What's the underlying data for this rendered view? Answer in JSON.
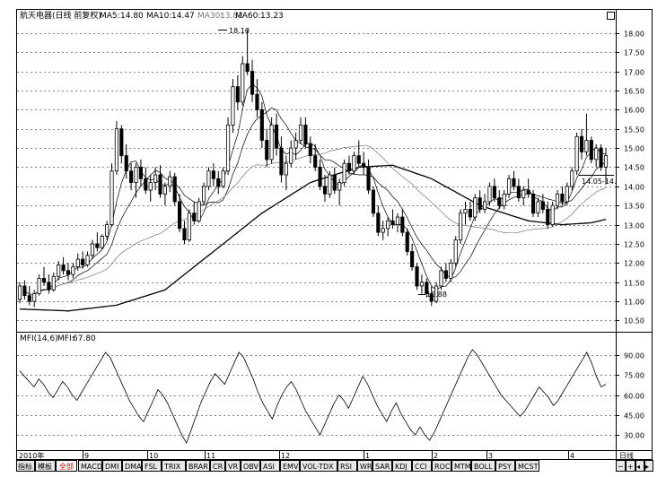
{
  "header": {
    "name": "航天电器(日线 前复权)",
    "ma5_label": "MA5:",
    "ma5_value": "14.80",
    "ma10_label": "MA10:",
    "ma10_value": "14.47",
    "ma30_label": "MA30:",
    "ma30_value": "13.82",
    "ma60_label": "MA60:",
    "ma60_value": "13.23"
  },
  "indicator_header": {
    "name": "MFI(14,6)",
    "value_label": "MFI:",
    "value": "67.80"
  },
  "annotations": {
    "high": "18.10",
    "low": "10.88",
    "last_range": "14.05-14."
  },
  "price_axis_ticks": [
    "18.00",
    "17.50",
    "17.00",
    "16.50",
    "16.00",
    "15.50",
    "15.00",
    "14.50",
    "14.00",
    "13.50",
    "13.00",
    "12.50",
    "12.00",
    "11.50",
    "11.00",
    "10.50"
  ],
  "mfi_axis_ticks": [
    "90.00",
    "75.00",
    "60.00",
    "45.00",
    "30.00"
  ],
  "time_axis_labels": [
    "2010年",
    "9",
    "10",
    "11",
    "12",
    "1",
    "2",
    "3",
    "4"
  ],
  "period": "日线",
  "nav": {
    "prev": "◂",
    "next": "▸",
    "minus": "−",
    "plus": "+"
  },
  "tabs": {
    "indicator": "指标",
    "template": "模板",
    "all": "全部"
  },
  "indicators": [
    "MACD",
    "DMI",
    "DMA",
    "FSL",
    "TRIX",
    "BRAR",
    "CR",
    "VR",
    "OBV",
    "ASI",
    "EMV",
    "VOL-TDX",
    "RSI",
    "WR",
    "SAR",
    "KDJ",
    "CCI",
    "ROC",
    "MTM",
    "BOLL",
    "PSY",
    "MCST"
  ],
  "colors": {
    "background": "#ffffff",
    "line": "#000000",
    "grid": "#000000",
    "active_tab": "#cc0000",
    "ma30": "#777777"
  },
  "chart_data": {
    "type": "candlestick",
    "price_ylim": [
      10.3,
      18.3
    ],
    "mfi_ylim": [
      20,
      98
    ],
    "candles": [
      {
        "o": 11.05,
        "h": 11.5,
        "l": 10.95,
        "c": 11.4
      },
      {
        "o": 11.4,
        "h": 11.55,
        "l": 11.05,
        "c": 11.15
      },
      {
        "o": 11.15,
        "h": 11.4,
        "l": 10.9,
        "c": 11.0
      },
      {
        "o": 11.0,
        "h": 11.3,
        "l": 10.85,
        "c": 11.2
      },
      {
        "o": 11.2,
        "h": 11.7,
        "l": 11.15,
        "c": 11.6
      },
      {
        "o": 11.6,
        "h": 11.9,
        "l": 11.4,
        "c": 11.5
      },
      {
        "o": 11.5,
        "h": 11.7,
        "l": 11.2,
        "c": 11.3
      },
      {
        "o": 11.3,
        "h": 11.75,
        "l": 11.25,
        "c": 11.65
      },
      {
        "o": 11.65,
        "h": 12.05,
        "l": 11.55,
        "c": 11.95
      },
      {
        "o": 11.95,
        "h": 12.15,
        "l": 11.7,
        "c": 11.8
      },
      {
        "o": 11.8,
        "h": 12.0,
        "l": 11.55,
        "c": 11.7
      },
      {
        "o": 11.7,
        "h": 12.0,
        "l": 11.6,
        "c": 11.9
      },
      {
        "o": 11.9,
        "h": 12.25,
        "l": 11.8,
        "c": 12.1
      },
      {
        "o": 12.1,
        "h": 12.3,
        "l": 11.85,
        "c": 11.95
      },
      {
        "o": 11.95,
        "h": 12.3,
        "l": 11.9,
        "c": 12.2
      },
      {
        "o": 12.2,
        "h": 12.6,
        "l": 12.1,
        "c": 12.5
      },
      {
        "o": 12.5,
        "h": 12.8,
        "l": 12.3,
        "c": 12.4
      },
      {
        "o": 12.4,
        "h": 12.75,
        "l": 12.35,
        "c": 12.7
      },
      {
        "o": 12.7,
        "h": 13.1,
        "l": 12.6,
        "c": 13.0
      },
      {
        "o": 13.0,
        "h": 14.6,
        "l": 12.95,
        "c": 14.4
      },
      {
        "o": 14.4,
        "h": 15.7,
        "l": 14.3,
        "c": 15.5
      },
      {
        "o": 15.5,
        "h": 15.6,
        "l": 14.6,
        "c": 14.8
      },
      {
        "o": 14.8,
        "h": 15.1,
        "l": 14.2,
        "c": 14.4
      },
      {
        "o": 14.4,
        "h": 14.6,
        "l": 13.9,
        "c": 14.1
      },
      {
        "o": 14.1,
        "h": 14.6,
        "l": 13.7,
        "c": 14.5
      },
      {
        "o": 14.5,
        "h": 14.7,
        "l": 14.0,
        "c": 14.2
      },
      {
        "o": 14.2,
        "h": 14.5,
        "l": 13.8,
        "c": 13.9
      },
      {
        "o": 13.9,
        "h": 14.3,
        "l": 13.6,
        "c": 14.1
      },
      {
        "o": 14.1,
        "h": 14.5,
        "l": 13.9,
        "c": 14.3
      },
      {
        "o": 14.3,
        "h": 14.55,
        "l": 13.7,
        "c": 13.8
      },
      {
        "o": 13.8,
        "h": 14.1,
        "l": 13.5,
        "c": 14.0
      },
      {
        "o": 14.0,
        "h": 14.4,
        "l": 13.85,
        "c": 14.25
      },
      {
        "o": 14.25,
        "h": 14.35,
        "l": 13.5,
        "c": 13.6
      },
      {
        "o": 13.6,
        "h": 13.8,
        "l": 12.8,
        "c": 12.9
      },
      {
        "o": 12.9,
        "h": 13.1,
        "l": 12.5,
        "c": 12.6
      },
      {
        "o": 12.6,
        "h": 13.4,
        "l": 12.55,
        "c": 13.3
      },
      {
        "o": 13.3,
        "h": 13.6,
        "l": 13.0,
        "c": 13.1
      },
      {
        "o": 13.1,
        "h": 13.7,
        "l": 13.05,
        "c": 13.6
      },
      {
        "o": 13.6,
        "h": 14.1,
        "l": 13.5,
        "c": 14.0
      },
      {
        "o": 14.0,
        "h": 14.5,
        "l": 13.9,
        "c": 14.4
      },
      {
        "o": 14.4,
        "h": 14.6,
        "l": 14.0,
        "c": 14.2
      },
      {
        "o": 14.2,
        "h": 14.4,
        "l": 13.8,
        "c": 14.0
      },
      {
        "o": 14.0,
        "h": 14.5,
        "l": 13.95,
        "c": 14.4
      },
      {
        "o": 14.4,
        "h": 15.8,
        "l": 14.3,
        "c": 15.6
      },
      {
        "o": 15.6,
        "h": 16.8,
        "l": 15.4,
        "c": 16.6
      },
      {
        "o": 16.6,
        "h": 16.9,
        "l": 16.0,
        "c": 16.2
      },
      {
        "o": 16.2,
        "h": 17.4,
        "l": 16.1,
        "c": 17.2
      },
      {
        "o": 17.2,
        "h": 18.1,
        "l": 16.9,
        "c": 17.0
      },
      {
        "o": 17.0,
        "h": 17.3,
        "l": 16.2,
        "c": 16.4
      },
      {
        "o": 16.4,
        "h": 16.8,
        "l": 15.8,
        "c": 16.0
      },
      {
        "o": 16.0,
        "h": 16.2,
        "l": 15.0,
        "c": 15.2
      },
      {
        "o": 15.2,
        "h": 15.5,
        "l": 14.5,
        "c": 14.7
      },
      {
        "o": 14.7,
        "h": 15.8,
        "l": 14.6,
        "c": 15.6
      },
      {
        "o": 15.6,
        "h": 15.9,
        "l": 14.8,
        "c": 15.0
      },
      {
        "o": 15.0,
        "h": 15.3,
        "l": 14.1,
        "c": 14.3
      },
      {
        "o": 14.3,
        "h": 14.8,
        "l": 13.9,
        "c": 14.6
      },
      {
        "o": 14.6,
        "h": 15.2,
        "l": 14.5,
        "c": 15.0
      },
      {
        "o": 15.0,
        "h": 15.4,
        "l": 14.7,
        "c": 15.2
      },
      {
        "o": 15.2,
        "h": 15.8,
        "l": 15.1,
        "c": 15.6
      },
      {
        "o": 15.6,
        "h": 15.8,
        "l": 15.0,
        "c": 15.1
      },
      {
        "o": 15.1,
        "h": 15.3,
        "l": 14.6,
        "c": 14.8
      },
      {
        "o": 14.8,
        "h": 15.1,
        "l": 14.4,
        "c": 14.5
      },
      {
        "o": 14.5,
        "h": 14.7,
        "l": 13.9,
        "c": 14.0
      },
      {
        "o": 14.0,
        "h": 14.3,
        "l": 13.6,
        "c": 13.8
      },
      {
        "o": 13.8,
        "h": 14.4,
        "l": 13.7,
        "c": 14.3
      },
      {
        "o": 14.3,
        "h": 14.5,
        "l": 13.8,
        "c": 13.9
      },
      {
        "o": 13.9,
        "h": 14.2,
        "l": 13.5,
        "c": 14.1
      },
      {
        "o": 14.1,
        "h": 14.7,
        "l": 14.0,
        "c": 14.6
      },
      {
        "o": 14.6,
        "h": 14.8,
        "l": 14.3,
        "c": 14.4
      },
      {
        "o": 14.4,
        "h": 14.9,
        "l": 14.3,
        "c": 14.8
      },
      {
        "o": 14.8,
        "h": 15.2,
        "l": 14.5,
        "c": 14.6
      },
      {
        "o": 14.6,
        "h": 14.9,
        "l": 14.3,
        "c": 14.5
      },
      {
        "o": 14.5,
        "h": 14.7,
        "l": 13.8,
        "c": 13.9
      },
      {
        "o": 13.9,
        "h": 14.0,
        "l": 13.2,
        "c": 13.3
      },
      {
        "o": 13.3,
        "h": 13.5,
        "l": 12.7,
        "c": 12.8
      },
      {
        "o": 12.8,
        "h": 13.1,
        "l": 12.6,
        "c": 12.9
      },
      {
        "o": 12.9,
        "h": 13.2,
        "l": 12.7,
        "c": 13.1
      },
      {
        "o": 13.1,
        "h": 13.4,
        "l": 12.9,
        "c": 13.0
      },
      {
        "o": 13.0,
        "h": 13.3,
        "l": 12.8,
        "c": 13.2
      },
      {
        "o": 13.2,
        "h": 13.4,
        "l": 12.7,
        "c": 12.8
      },
      {
        "o": 12.8,
        "h": 12.9,
        "l": 12.2,
        "c": 12.3
      },
      {
        "o": 12.3,
        "h": 12.5,
        "l": 11.8,
        "c": 11.9
      },
      {
        "o": 11.9,
        "h": 12.0,
        "l": 11.3,
        "c": 11.4
      },
      {
        "o": 11.4,
        "h": 11.7,
        "l": 11.2,
        "c": 11.5
      },
      {
        "o": 11.5,
        "h": 11.6,
        "l": 11.1,
        "c": 11.2
      },
      {
        "o": 11.2,
        "h": 11.4,
        "l": 10.88,
        "c": 11.0
      },
      {
        "o": 11.0,
        "h": 11.5,
        "l": 10.95,
        "c": 11.4
      },
      {
        "o": 11.4,
        "h": 11.9,
        "l": 11.3,
        "c": 11.8
      },
      {
        "o": 11.8,
        "h": 12.0,
        "l": 11.5,
        "c": 11.6
      },
      {
        "o": 11.6,
        "h": 12.1,
        "l": 11.5,
        "c": 12.0
      },
      {
        "o": 12.0,
        "h": 12.7,
        "l": 11.9,
        "c": 12.6
      },
      {
        "o": 12.6,
        "h": 13.4,
        "l": 12.5,
        "c": 13.3
      },
      {
        "o": 13.3,
        "h": 13.6,
        "l": 13.0,
        "c": 13.4
      },
      {
        "o": 13.4,
        "h": 13.6,
        "l": 13.1,
        "c": 13.2
      },
      {
        "o": 13.2,
        "h": 13.8,
        "l": 13.1,
        "c": 13.7
      },
      {
        "o": 13.7,
        "h": 13.9,
        "l": 13.3,
        "c": 13.4
      },
      {
        "o": 13.4,
        "h": 13.8,
        "l": 13.3,
        "c": 13.6
      },
      {
        "o": 13.6,
        "h": 14.1,
        "l": 13.5,
        "c": 14.0
      },
      {
        "o": 14.0,
        "h": 14.2,
        "l": 13.6,
        "c": 13.7
      },
      {
        "o": 13.7,
        "h": 13.9,
        "l": 13.4,
        "c": 13.5
      },
      {
        "o": 13.5,
        "h": 13.9,
        "l": 13.4,
        "c": 13.8
      },
      {
        "o": 13.8,
        "h": 14.3,
        "l": 13.7,
        "c": 14.2
      },
      {
        "o": 14.2,
        "h": 14.4,
        "l": 13.9,
        "c": 14.0
      },
      {
        "o": 14.0,
        "h": 14.2,
        "l": 13.6,
        "c": 13.7
      },
      {
        "o": 13.7,
        "h": 14.0,
        "l": 13.5,
        "c": 13.9
      },
      {
        "o": 13.9,
        "h": 14.2,
        "l": 13.7,
        "c": 13.8
      },
      {
        "o": 13.8,
        "h": 13.9,
        "l": 13.2,
        "c": 13.3
      },
      {
        "o": 13.3,
        "h": 13.7,
        "l": 13.2,
        "c": 13.6
      },
      {
        "o": 13.6,
        "h": 13.8,
        "l": 13.3,
        "c": 13.4
      },
      {
        "o": 13.4,
        "h": 13.6,
        "l": 12.9,
        "c": 13.0
      },
      {
        "o": 13.0,
        "h": 13.6,
        "l": 12.95,
        "c": 13.5
      },
      {
        "o": 13.5,
        "h": 13.9,
        "l": 13.4,
        "c": 13.8
      },
      {
        "o": 13.8,
        "h": 14.0,
        "l": 13.5,
        "c": 13.6
      },
      {
        "o": 13.6,
        "h": 14.1,
        "l": 13.5,
        "c": 14.0
      },
      {
        "o": 14.0,
        "h": 14.5,
        "l": 13.9,
        "c": 14.4
      },
      {
        "o": 14.4,
        "h": 15.4,
        "l": 14.3,
        "c": 15.3
      },
      {
        "o": 15.3,
        "h": 15.5,
        "l": 14.7,
        "c": 14.9
      },
      {
        "o": 14.9,
        "h": 15.9,
        "l": 14.8,
        "c": 15.2
      },
      {
        "o": 15.2,
        "h": 15.3,
        "l": 14.6,
        "c": 14.7
      },
      {
        "o": 14.7,
        "h": 15.1,
        "l": 14.5,
        "c": 15.0
      },
      {
        "o": 15.0,
        "h": 15.1,
        "l": 14.4,
        "c": 14.5
      },
      {
        "o": 14.5,
        "h": 15.0,
        "l": 14.05,
        "c": 14.8
      }
    ],
    "ma60_knots": [
      [
        0,
        10.8
      ],
      [
        10,
        10.75
      ],
      [
        20,
        10.9
      ],
      [
        30,
        11.3
      ],
      [
        40,
        12.3
      ],
      [
        50,
        13.3
      ],
      [
        60,
        14.1
      ],
      [
        70,
        14.5
      ],
      [
        77,
        14.55
      ],
      [
        85,
        14.2
      ],
      [
        95,
        13.5
      ],
      [
        105,
        13.1
      ],
      [
        112,
        13.0
      ],
      [
        118,
        13.05
      ],
      [
        124,
        13.23
      ]
    ],
    "mfi": [
      78,
      74,
      70,
      66,
      72,
      68,
      62,
      58,
      64,
      70,
      66,
      60,
      56,
      62,
      68,
      74,
      80,
      86,
      92,
      88,
      80,
      72,
      64,
      56,
      50,
      44,
      40,
      48,
      56,
      64,
      60,
      54,
      46,
      38,
      30,
      24,
      34,
      44,
      54,
      62,
      70,
      76,
      72,
      68,
      76,
      84,
      92,
      88,
      80,
      72,
      62,
      54,
      48,
      42,
      52,
      60,
      66,
      70,
      64,
      56,
      48,
      42,
      36,
      30,
      38,
      46,
      54,
      60,
      56,
      50,
      58,
      66,
      74,
      68,
      60,
      52,
      46,
      40,
      48,
      54,
      46,
      40,
      34,
      30,
      36,
      30,
      26,
      32,
      40,
      48,
      56,
      64,
      72,
      80,
      88,
      94,
      90,
      84,
      78,
      72,
      66,
      60,
      56,
      52,
      48,
      44,
      48,
      54,
      60,
      66,
      62,
      58,
      52,
      56,
      62,
      68,
      74,
      80,
      86,
      92,
      84,
      74,
      66,
      68
    ]
  }
}
